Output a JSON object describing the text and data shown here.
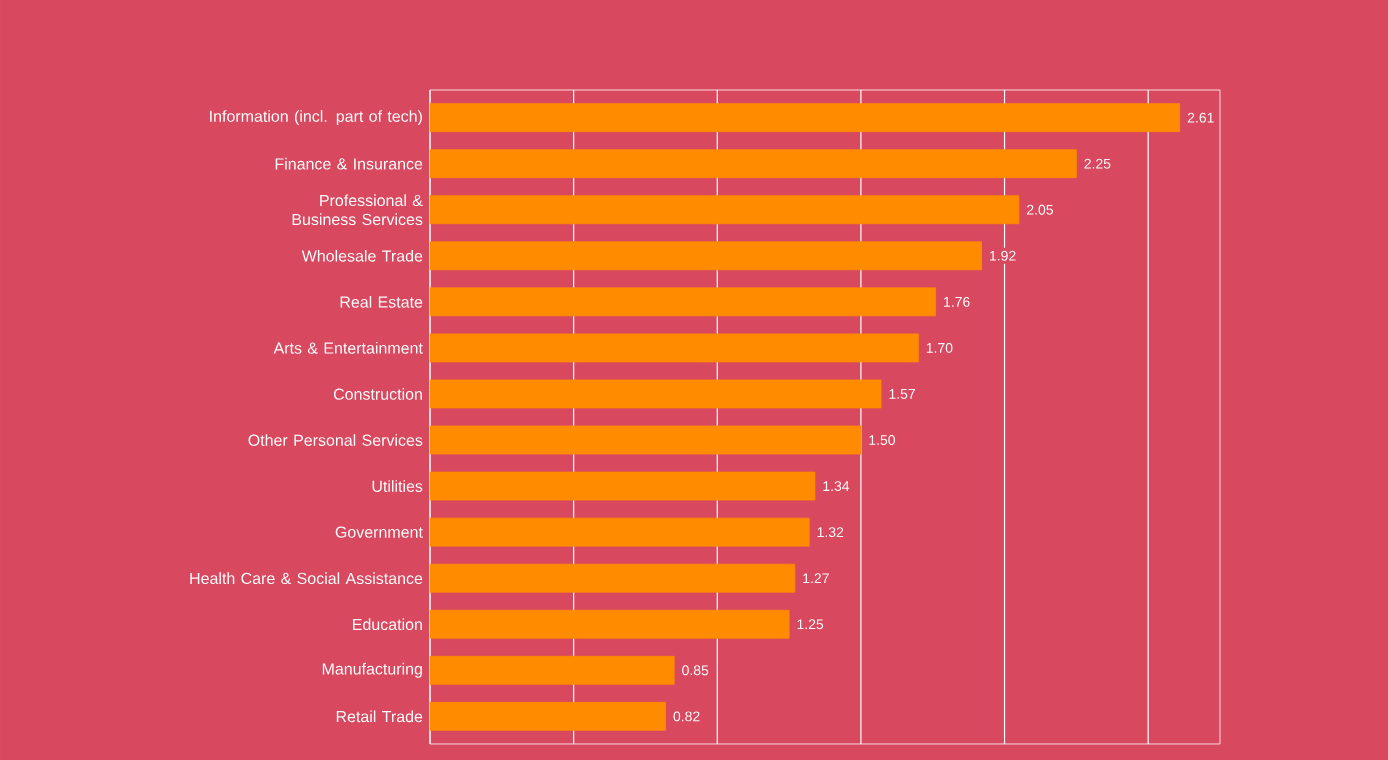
{
  "chart_data": {
    "type": "bar",
    "orientation": "horizontal",
    "categories": [
      "Information (incl. part of tech)",
      "Finance & Insurance",
      "Professional & Business Services",
      "Wholesale Trade",
      "Real Estate",
      "Arts & Entertainment",
      "Construction",
      "Other Personal Services",
      "Utilities",
      "Government",
      "Health Care & Social Assistance",
      "Education",
      "Manufacturing",
      "Retail Trade"
    ],
    "values": [
      2.61,
      2.25,
      2.05,
      1.92,
      1.76,
      1.7,
      1.57,
      1.5,
      1.34,
      1.32,
      1.27,
      1.25,
      0.85,
      0.82
    ],
    "value_labels": [
      "2.61",
      "2.25",
      "2.05",
      "1.92",
      "1.76",
      "1.70",
      "1.57",
      "1.50",
      "1.34",
      "1.32",
      "1.27",
      "1.25",
      "0.85",
      "0.82"
    ],
    "color": "#ff8c00",
    "xlim": [
      0,
      2.75
    ],
    "xticks": [
      {
        "value": 0,
        "label": null
      },
      {
        "value": 0.5,
        "label": null
      },
      {
        "value": 1,
        "label": null
      },
      {
        "value": 1.5,
        "label": null
      },
      {
        "value": 2,
        "label": null
      },
      {
        "value": 2.5,
        "label": null
      }
    ],
    "grid": "x"
  }
}
